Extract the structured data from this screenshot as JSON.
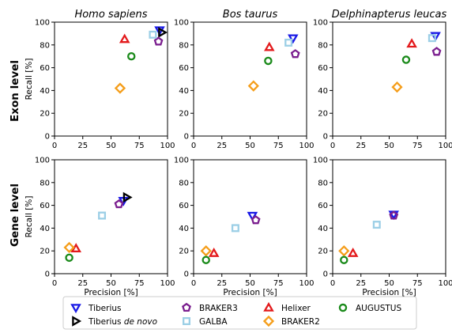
{
  "figure": {
    "row_labels": [
      "Exon level",
      "Gene level"
    ],
    "column_titles": [
      "Homo sapiens",
      "Bos taurus",
      "Delphinapterus leucas"
    ],
    "xlabel": "Precision [%]",
    "ylabel": "Recall [%]"
  },
  "legend": {
    "placement": "bottom",
    "entries": [
      {
        "tool": "Tiberius",
        "label_parts": [
          {
            "text": "Tiberius",
            "italic": false
          }
        ]
      },
      {
        "tool": "Tiberius de novo",
        "label_parts": [
          {
            "text": "Tiberius ",
            "italic": false
          },
          {
            "text": "de novo",
            "italic": true
          }
        ]
      },
      {
        "tool": "BRAKER3",
        "label_parts": [
          {
            "text": "BRAKER3",
            "italic": false
          }
        ]
      },
      {
        "tool": "GALBA",
        "label_parts": [
          {
            "text": "GALBA",
            "italic": false
          }
        ]
      },
      {
        "tool": "Helixer",
        "label_parts": [
          {
            "text": "Helixer",
            "italic": false
          }
        ]
      },
      {
        "tool": "BRAKER2",
        "label_parts": [
          {
            "text": "BRAKER2",
            "italic": false
          }
        ]
      },
      {
        "tool": "AUGUSTUS",
        "label_parts": [
          {
            "text": "AUGUSTUS",
            "italic": false
          }
        ]
      }
    ]
  },
  "styles": {
    "Tiberius": {
      "marker": "triangle-down-icon",
      "color": "#1a1ae6"
    },
    "Tiberius de novo": {
      "marker": "triangle-right-icon",
      "color": "#000000"
    },
    "BRAKER3": {
      "marker": "pentagon-icon",
      "color": "#7b1f8f"
    },
    "GALBA": {
      "marker": "square-icon",
      "color": "#9ccfe6"
    },
    "Helixer": {
      "marker": "triangle-up-icon",
      "color": "#e31a1c"
    },
    "BRAKER2": {
      "marker": "diamond-icon",
      "color": "#f59e1b"
    },
    "AUGUSTUS": {
      "marker": "circle-icon",
      "color": "#1a8a1a"
    }
  },
  "chart_data": [
    {
      "type": "scatter",
      "row": "Exon level",
      "title": "Homo sapiens",
      "xlabel": "",
      "ylabel": "Recall [%]",
      "xlim": [
        0,
        100
      ],
      "ylim": [
        0,
        100
      ],
      "xticks": [
        0,
        25,
        50,
        75,
        100
      ],
      "yticks": [
        0,
        20,
        40,
        60,
        80,
        100
      ],
      "grid": false,
      "points": [
        {
          "tool": "Tiberius",
          "x": 93,
          "y": 93
        },
        {
          "tool": "Tiberius de novo",
          "x": 95,
          "y": 91
        },
        {
          "tool": "BRAKER3",
          "x": 92,
          "y": 83
        },
        {
          "tool": "GALBA",
          "x": 87,
          "y": 89
        },
        {
          "tool": "Helixer",
          "x": 62,
          "y": 85
        },
        {
          "tool": "BRAKER2",
          "x": 58,
          "y": 42
        },
        {
          "tool": "AUGUSTUS",
          "x": 68,
          "y": 70
        }
      ]
    },
    {
      "type": "scatter",
      "row": "Exon level",
      "title": "Bos taurus",
      "xlabel": "",
      "ylabel": "",
      "xlim": [
        0,
        100
      ],
      "ylim": [
        0,
        100
      ],
      "xticks": [
        0,
        25,
        50,
        75,
        100
      ],
      "yticks": [
        0,
        20,
        40,
        60,
        80,
        100
      ],
      "grid": false,
      "points": [
        {
          "tool": "Tiberius",
          "x": 88,
          "y": 86
        },
        {
          "tool": "BRAKER3",
          "x": 90,
          "y": 72
        },
        {
          "tool": "GALBA",
          "x": 84,
          "y": 82
        },
        {
          "tool": "Helixer",
          "x": 67,
          "y": 78
        },
        {
          "tool": "BRAKER2",
          "x": 53,
          "y": 44
        },
        {
          "tool": "AUGUSTUS",
          "x": 66,
          "y": 66
        }
      ]
    },
    {
      "type": "scatter",
      "row": "Exon level",
      "title": "Delphinapterus leucas",
      "xlabel": "",
      "ylabel": "",
      "xlim": [
        0,
        100
      ],
      "ylim": [
        0,
        100
      ],
      "xticks": [
        0,
        25,
        50,
        75,
        100
      ],
      "yticks": [
        0,
        20,
        40,
        60,
        80,
        100
      ],
      "grid": false,
      "points": [
        {
          "tool": "Tiberius",
          "x": 91,
          "y": 88
        },
        {
          "tool": "BRAKER3",
          "x": 92,
          "y": 74
        },
        {
          "tool": "GALBA",
          "x": 88,
          "y": 86
        },
        {
          "tool": "Helixer",
          "x": 70,
          "y": 81
        },
        {
          "tool": "BRAKER2",
          "x": 57,
          "y": 43
        },
        {
          "tool": "AUGUSTUS",
          "x": 65,
          "y": 67
        }
      ]
    },
    {
      "type": "scatter",
      "row": "Gene level",
      "title": "",
      "xlabel": "Precision [%]",
      "ylabel": "Recall [%]",
      "xlim": [
        0,
        100
      ],
      "ylim": [
        0,
        100
      ],
      "xticks": [
        0,
        25,
        50,
        75,
        100
      ],
      "yticks": [
        0,
        20,
        40,
        60,
        80,
        100
      ],
      "grid": false,
      "points": [
        {
          "tool": "Tiberius",
          "x": 61,
          "y": 64
        },
        {
          "tool": "Tiberius de novo",
          "x": 64,
          "y": 67
        },
        {
          "tool": "BRAKER3",
          "x": 57,
          "y": 61
        },
        {
          "tool": "GALBA",
          "x": 42,
          "y": 51
        },
        {
          "tool": "Helixer",
          "x": 19,
          "y": 22
        },
        {
          "tool": "BRAKER2",
          "x": 13,
          "y": 23
        },
        {
          "tool": "AUGUSTUS",
          "x": 13,
          "y": 14
        }
      ]
    },
    {
      "type": "scatter",
      "row": "Gene level",
      "title": "",
      "xlabel": "Precision [%]",
      "ylabel": "",
      "xlim": [
        0,
        100
      ],
      "ylim": [
        0,
        100
      ],
      "xticks": [
        0,
        25,
        50,
        75,
        100
      ],
      "yticks": [
        0,
        20,
        40,
        60,
        80,
        100
      ],
      "grid": false,
      "points": [
        {
          "tool": "Tiberius",
          "x": 52,
          "y": 51
        },
        {
          "tool": "BRAKER3",
          "x": 55,
          "y": 47
        },
        {
          "tool": "GALBA",
          "x": 37,
          "y": 40
        },
        {
          "tool": "Helixer",
          "x": 18,
          "y": 18
        },
        {
          "tool": "BRAKER2",
          "x": 11,
          "y": 20
        },
        {
          "tool": "AUGUSTUS",
          "x": 11,
          "y": 12
        }
      ]
    },
    {
      "type": "scatter",
      "row": "Gene level",
      "title": "",
      "xlabel": "Precision [%]",
      "ylabel": "",
      "xlim": [
        0,
        100
      ],
      "ylim": [
        0,
        100
      ],
      "xticks": [
        0,
        25,
        50,
        75,
        100
      ],
      "yticks": [
        0,
        20,
        40,
        60,
        80,
        100
      ],
      "grid": false,
      "points": [
        {
          "tool": "Tiberius",
          "x": 54,
          "y": 52
        },
        {
          "tool": "BRAKER3",
          "x": 54,
          "y": 51
        },
        {
          "tool": "GALBA",
          "x": 39,
          "y": 43
        },
        {
          "tool": "Helixer",
          "x": 18,
          "y": 18
        },
        {
          "tool": "BRAKER2",
          "x": 10,
          "y": 20
        },
        {
          "tool": "AUGUSTUS",
          "x": 10,
          "y": 12
        }
      ]
    }
  ]
}
